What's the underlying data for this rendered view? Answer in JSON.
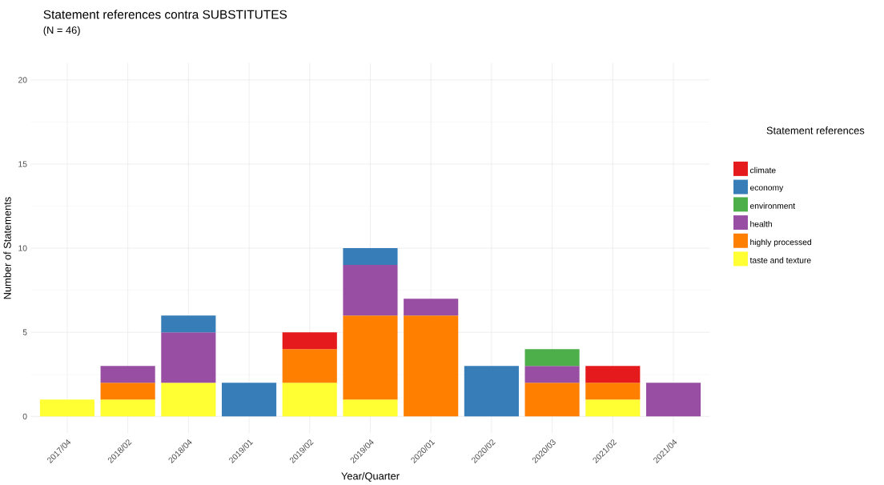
{
  "chart_data": {
    "type": "bar",
    "title": "Statement references contra SUBSTITUTES",
    "subtitle": "(N = 46)",
    "xlabel": "Year/Quarter",
    "ylabel": "Number of Statements",
    "legend_title": "Statement references",
    "categories": [
      "2017/04",
      "2018/02",
      "2018/04",
      "2019/01",
      "2019/02",
      "2019/04",
      "2020/01",
      "2020/02",
      "2020/03",
      "2021/02",
      "2021/04"
    ],
    "stacked": true,
    "ylim": [
      0,
      20
    ],
    "yticks": [
      0,
      5,
      10,
      15,
      20
    ],
    "grid": true,
    "legend": "right",
    "series": [
      {
        "name": "taste and texture",
        "color": "#ffff33",
        "values": [
          1,
          1,
          2,
          null,
          2,
          1,
          null,
          null,
          null,
          1,
          null
        ]
      },
      {
        "name": "highly processed",
        "color": "#ff7f00",
        "values": [
          null,
          1,
          null,
          null,
          2,
          5,
          6,
          null,
          2,
          1,
          null
        ]
      },
      {
        "name": "health",
        "color": "#984ea3",
        "values": [
          null,
          1,
          3,
          null,
          null,
          3,
          1,
          null,
          1,
          null,
          2
        ]
      },
      {
        "name": "environment",
        "color": "#4daf4a",
        "values": [
          null,
          null,
          null,
          null,
          null,
          null,
          null,
          null,
          1,
          null,
          null
        ]
      },
      {
        "name": "economy",
        "color": "#377eb8",
        "values": [
          null,
          null,
          1,
          2,
          null,
          1,
          null,
          3,
          null,
          null,
          null
        ]
      },
      {
        "name": "climate",
        "color": "#e41a1c",
        "values": [
          null,
          null,
          null,
          null,
          1,
          null,
          null,
          null,
          null,
          1,
          null
        ]
      }
    ]
  }
}
